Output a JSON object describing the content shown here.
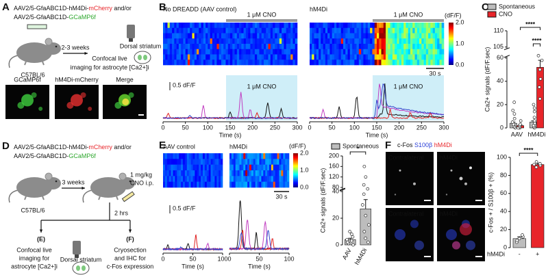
{
  "panels": {
    "A": {
      "label": "A",
      "aav": [
        [
          "AAV2/5-GfaABC1D-hM4Di-",
          "mCherry",
          " and/or"
        ],
        [
          "AAV2/5-GfaABC1D-",
          "GCaMP6f"
        ]
      ],
      "arrow": "2-3 weeks",
      "readout": [
        "Confocal live",
        "imaging for astrocyte [Ca2+]i"
      ],
      "region": "Dorsal striatum",
      "mouse": "C57BL/6",
      "images": [
        "GCaMP6f",
        "hM4Di-mCherry",
        "Merge"
      ]
    },
    "B": {
      "label": "B",
      "heatmaps": [
        {
          "title": "No DREADD (AAV control)",
          "drug": "1 μM CNO"
        },
        {
          "title": "hM4Di",
          "drug": "1 μM CNO"
        }
      ],
      "colorbar": {
        "title": "(dF/F)",
        "ticks": [
          "2.0",
          "1.0",
          "0.0"
        ]
      },
      "time_scale": "30 s",
      "trace_scale": "0.5 dF/F",
      "xticks": [
        0,
        50,
        100,
        150,
        200,
        250,
        300
      ],
      "xlabel": "Time (s)"
    },
    "D": {
      "label": "D",
      "aav": [
        [
          "AAV2/5-GfaABC1D-hM4Di-",
          "mCherry",
          " and/or"
        ],
        [
          "AAV2/5-GfaABC1D-",
          "GCaMP6f"
        ]
      ],
      "arrow": "3 weeks",
      "dose": [
        "1 mg/kg",
        "CNO i.p."
      ],
      "mouse": "C57BL/6",
      "wait": "2 hrs",
      "branches": [
        {
          "tag": "(E)",
          "text": [
            "Confocal live",
            "imaging for",
            "astrocyte [Ca2+]i"
          ],
          "region": "Dorsal striatum"
        },
        {
          "tag": "(F)",
          "text": [
            "Cryosection",
            "and IHC for",
            "c-Fos expression"
          ]
        }
      ]
    },
    "E": {
      "label": "E",
      "heatmaps": [
        "AAV control",
        "hM4Di"
      ],
      "colorbar": {
        "title": "(dF/F)",
        "ticks": [
          "2.0",
          "1.0",
          "0.0"
        ]
      },
      "time_scale": "30 s",
      "trace_scale": "0.5 dF/F",
      "xticks": [
        0,
        50,
        100
      ],
      "xlabel": "Time (s)"
    },
    "F": {
      "label": "F",
      "stain": [
        "c-Fos ",
        "S100β ",
        "hM4Di"
      ],
      "images": [
        "Contralateral",
        "hM4Di",
        "Contralateral",
        "hM4Di"
      ]
    }
  },
  "chart_data": [
    {
      "type": "bar",
      "label": "C",
      "ylabel": "Ca2+ signals (dF/F.sec)",
      "categories": [
        "AAV",
        "hM4Di"
      ],
      "series": [
        {
          "name": "Spontaneous",
          "color": "#bdbdbd",
          "values": [
            4,
            5
          ],
          "errors": [
            1,
            1
          ],
          "points": [
            [
              0,
              1,
              2,
              3,
              5,
              8,
              12,
              15,
              22
            ],
            [
              0,
              1,
              2,
              4,
              6,
              9,
              14,
              17,
              20
            ]
          ]
        },
        {
          "name": "CNO",
          "color": "#e8252a",
          "values": [
            2,
            52
          ],
          "errors": [
            0.5,
            6
          ],
          "points": [
            [
              0,
              0,
              1,
              2,
              3,
              6
            ],
            [
              25,
              35,
              42,
              50,
              58,
              62
            ]
          ]
        }
      ],
      "ylim": [
        0,
        110
      ],
      "yticks": [
        0,
        20,
        40,
        60,
        105,
        110
      ],
      "significance": [
        "****",
        "****"
      ]
    },
    {
      "type": "bar",
      "ylabel": "Ca2+ signals (dF/F.sec)",
      "categories": [
        "AAV",
        "hM4Di"
      ],
      "series": [
        {
          "name": "Spontaneous",
          "color": "#bdbdbd",
          "values": [
            4,
            27
          ],
          "errors": [
            1,
            7
          ],
          "points": [
            [
              0,
              1,
              2,
              3,
              4,
              6,
              8,
              10
            ],
            [
              2,
              5,
              10,
              15,
              22,
              30,
              38,
              42,
              90,
              120,
              160
            ]
          ]
        }
      ],
      "ylim": [
        0,
        200
      ],
      "yticks": [
        0,
        20,
        40,
        80,
        120,
        160,
        200
      ],
      "significance": [
        "*"
      ]
    },
    {
      "type": "bar",
      "ylabel": "c-Fos + / S100β + (%)",
      "xlabel": "hM4Di",
      "categories": [
        "-",
        "+"
      ],
      "values": [
        10,
        92
      ],
      "errors": [
        2,
        1.5
      ],
      "colors": [
        "#bdbdbd",
        "#e8252a"
      ],
      "points": [
        [
          6,
          8,
          10,
          12,
          14
        ],
        [
          89,
          91,
          92,
          93,
          95
        ]
      ],
      "ylim": [
        0,
        100
      ],
      "yticks": [
        0,
        20,
        40,
        60,
        80,
        100
      ],
      "significance": [
        "****"
      ]
    }
  ]
}
